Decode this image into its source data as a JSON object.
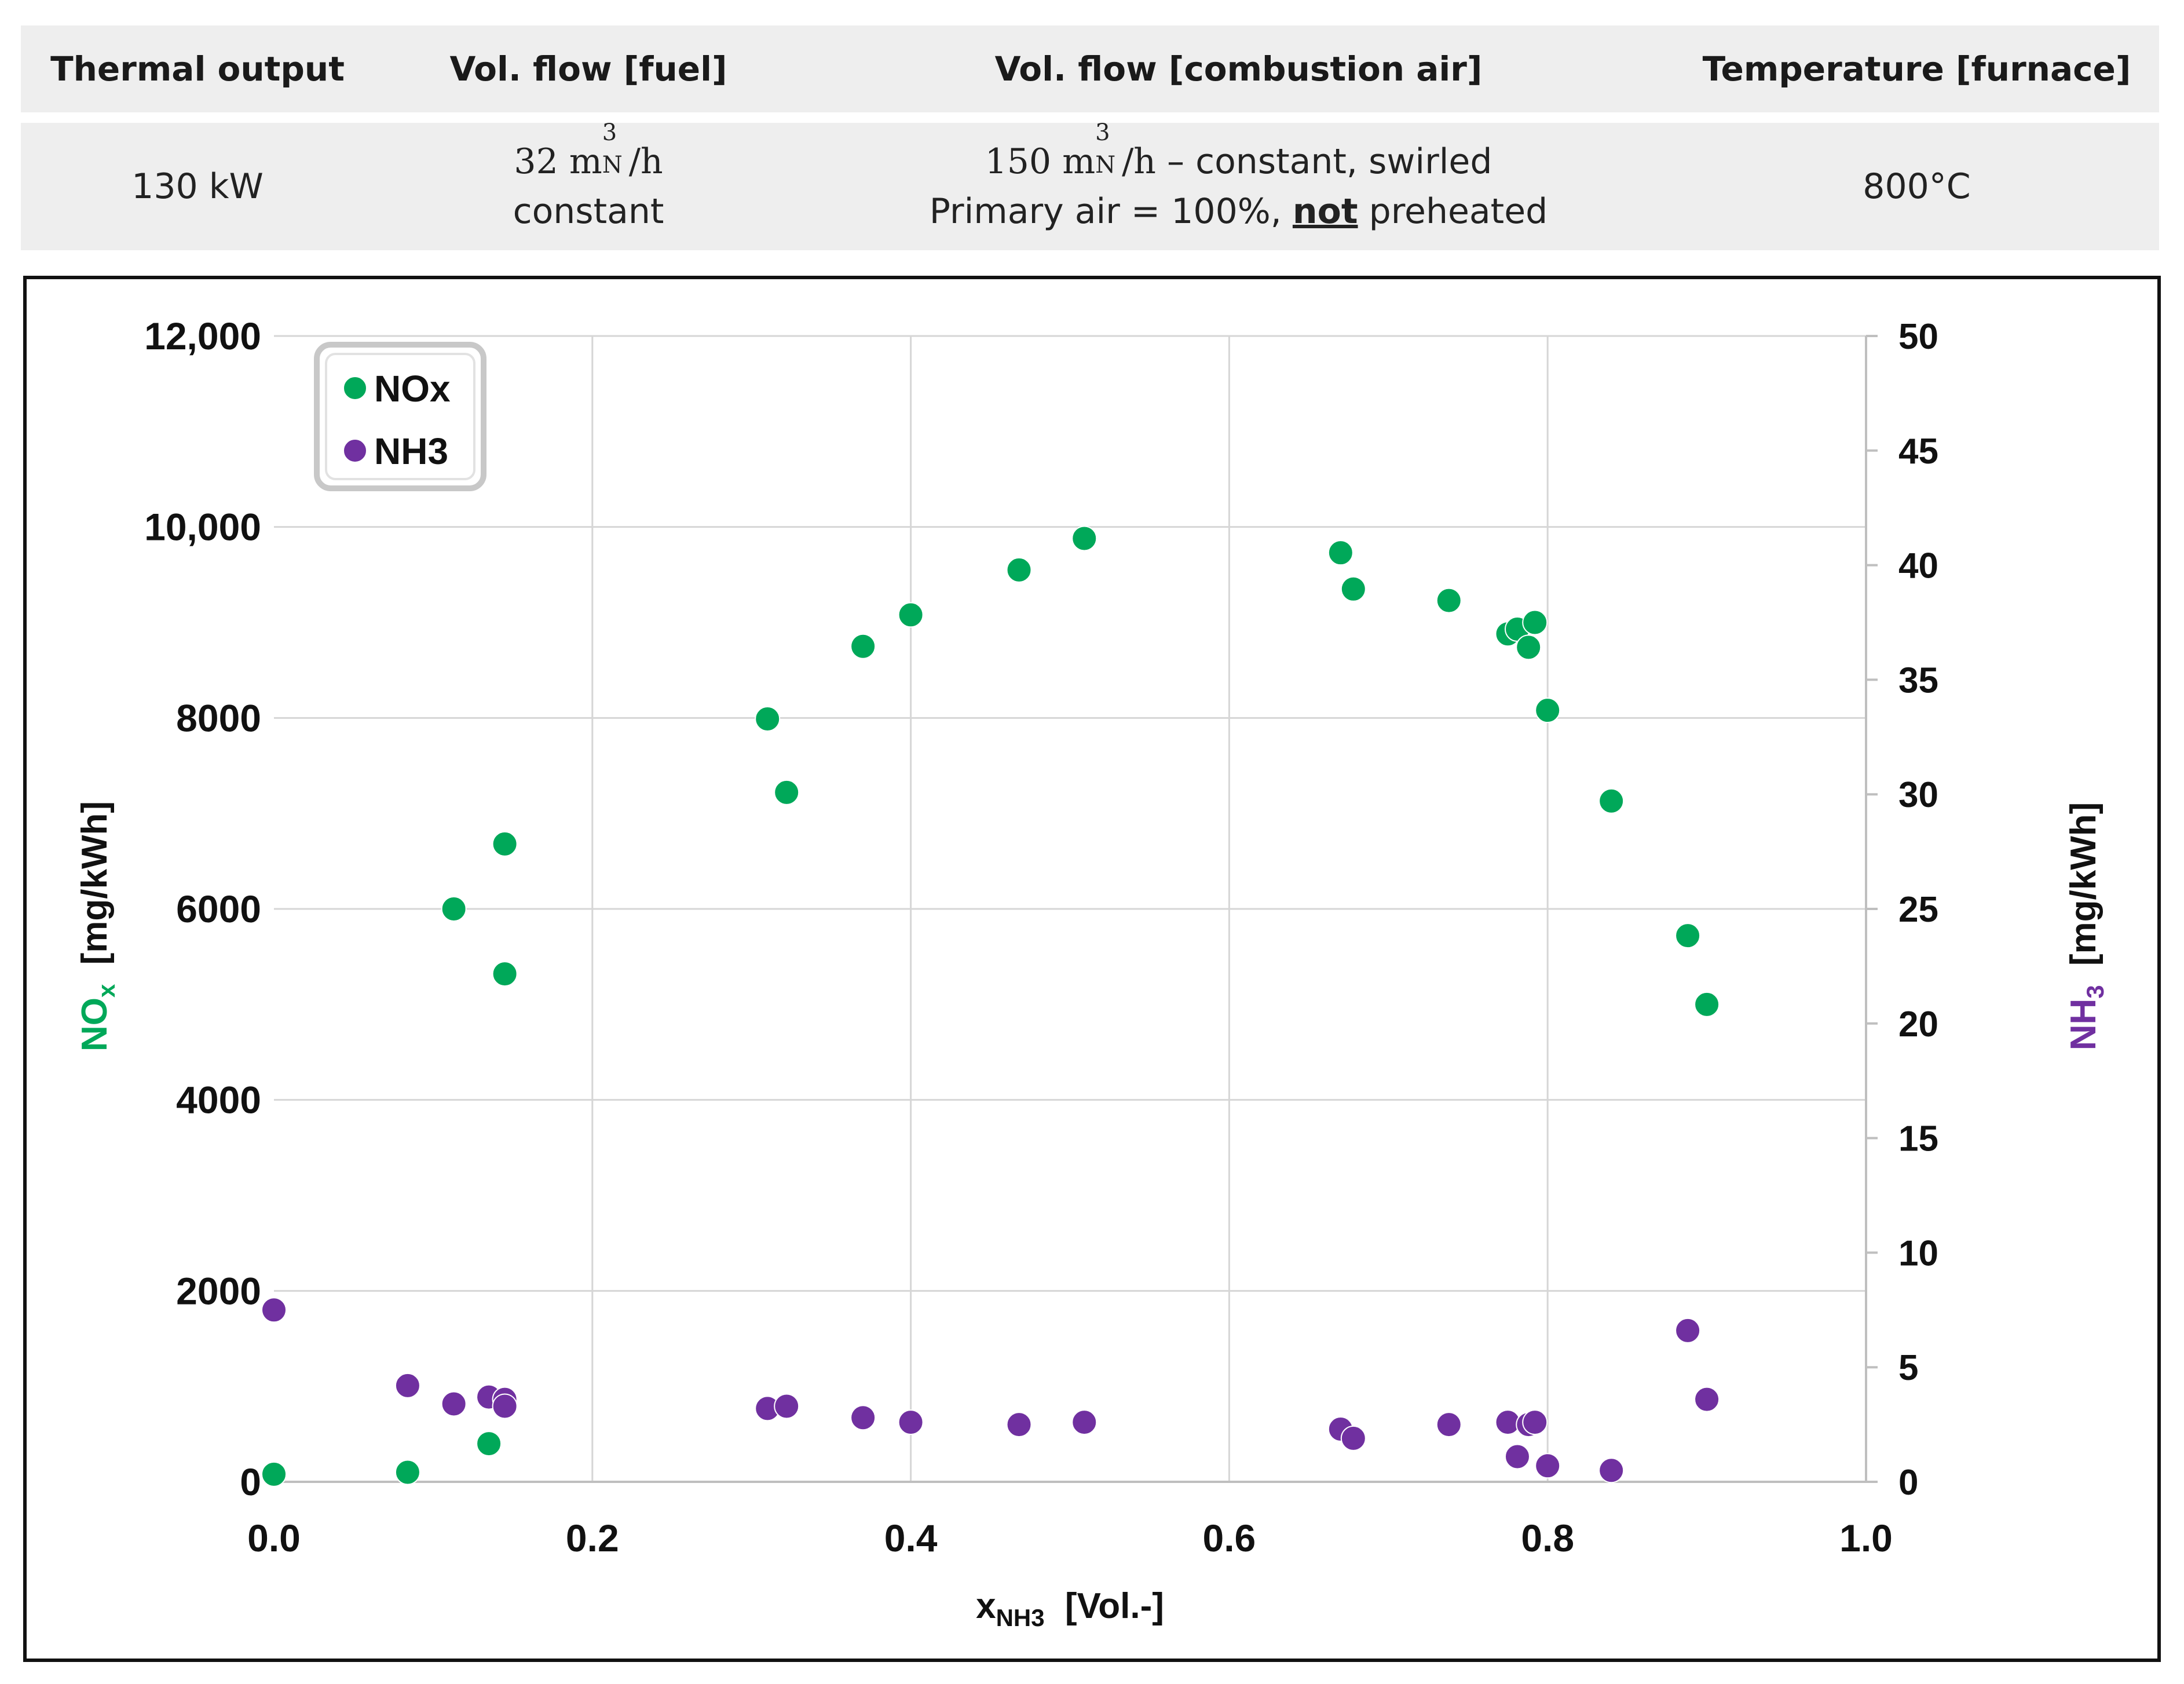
{
  "table": {
    "headers": [
      "Thermal output",
      "Vol. flow [fuel]",
      "Vol. flow [combustion air]",
      "Temperature [furnace]"
    ],
    "thermal_output": "130 kW",
    "fuel_flow_value": "32",
    "fuel_flow_unit": "m",
    "fuel_flow_sup": "3",
    "fuel_flow_sub": "N",
    "fuel_flow_per": "/h",
    "fuel_flow_note": "constant",
    "air_flow_value": "150",
    "air_flow_unit": "m",
    "air_flow_sup": "3",
    "air_flow_sub": "N",
    "air_flow_per": "/h",
    "air_flow_rest": " – constant, swirled",
    "air_note_prefix": "Primary air = 100%, ",
    "air_note_emph": "not",
    "air_note_suffix": " preheated",
    "furnace_temp": "800°C"
  },
  "colors": {
    "nox": "#00A859",
    "nh3": "#7030A0",
    "grid": "#d6d6d6",
    "axis": "#111111"
  },
  "chart_data": {
    "type": "scatter",
    "title": "",
    "legend": [
      "NOx",
      "NH3"
    ],
    "legend_position": "top-left",
    "xlabel": "x",
    "xlabel_sub": "NH3",
    "xlabel_suffix": "[Vol.-]",
    "ylabel_left": "NO",
    "ylabel_left_sub": "x",
    "ylabel_left_suffix": "[mg/kWh]",
    "ylabel_right": "NH",
    "ylabel_right_sub": "3",
    "ylabel_right_suffix": "[mg/kWh]",
    "xlim": [
      0,
      1
    ],
    "ylim_left": [
      0,
      12000
    ],
    "ylim_right": [
      0,
      50
    ],
    "x_ticks": [
      0.0,
      0.2,
      0.4,
      0.6,
      0.8,
      1.0
    ],
    "x_tick_labels": [
      "0.0",
      "0.2",
      "0.4",
      "0.6",
      "0.8",
      "1.0"
    ],
    "y_left_ticks": [
      0,
      2000,
      4000,
      6000,
      8000,
      10000,
      12000
    ],
    "y_left_tick_labels": [
      "0",
      "2000",
      "4000",
      "6000",
      "8000",
      "10,000",
      "12,000"
    ],
    "y_right_ticks": [
      0,
      5,
      10,
      15,
      20,
      25,
      30,
      35,
      40,
      45,
      50
    ],
    "y_right_tick_labels": [
      "0",
      "5",
      "10",
      "15",
      "20",
      "25",
      "30",
      "35",
      "40",
      "45",
      "50"
    ],
    "series": [
      {
        "name": "NOx",
        "axis": "left",
        "points": [
          [
            0.0,
            80
          ],
          [
            0.084,
            100
          ],
          [
            0.113,
            6000
          ],
          [
            0.135,
            400
          ],
          [
            0.145,
            6680
          ],
          [
            0.145,
            5320
          ],
          [
            0.31,
            7990
          ],
          [
            0.322,
            7220
          ],
          [
            0.37,
            8750
          ],
          [
            0.4,
            9080
          ],
          [
            0.468,
            9550
          ],
          [
            0.509,
            9880
          ],
          [
            0.67,
            9730
          ],
          [
            0.678,
            9350
          ],
          [
            0.738,
            9230
          ],
          [
            0.775,
            8880
          ],
          [
            0.781,
            8930
          ],
          [
            0.788,
            8740
          ],
          [
            0.792,
            9000
          ],
          [
            0.8,
            8080
          ],
          [
            0.84,
            7130
          ],
          [
            0.888,
            5720
          ],
          [
            0.9,
            5000
          ]
        ]
      },
      {
        "name": "NH3",
        "axis": "right",
        "points": [
          [
            0.0,
            7.5
          ],
          [
            0.084,
            4.2
          ],
          [
            0.113,
            3.4
          ],
          [
            0.135,
            3.7
          ],
          [
            0.145,
            3.6
          ],
          [
            0.145,
            3.3
          ],
          [
            0.31,
            3.2
          ],
          [
            0.322,
            3.3
          ],
          [
            0.37,
            2.8
          ],
          [
            0.4,
            2.6
          ],
          [
            0.468,
            2.5
          ],
          [
            0.509,
            2.6
          ],
          [
            0.67,
            2.3
          ],
          [
            0.678,
            1.9
          ],
          [
            0.738,
            2.5
          ],
          [
            0.775,
            2.6
          ],
          [
            0.781,
            1.1
          ],
          [
            0.788,
            2.5
          ],
          [
            0.792,
            2.6
          ],
          [
            0.8,
            0.7
          ],
          [
            0.84,
            0.5
          ],
          [
            0.888,
            6.6
          ],
          [
            0.9,
            3.6
          ]
        ]
      }
    ]
  }
}
